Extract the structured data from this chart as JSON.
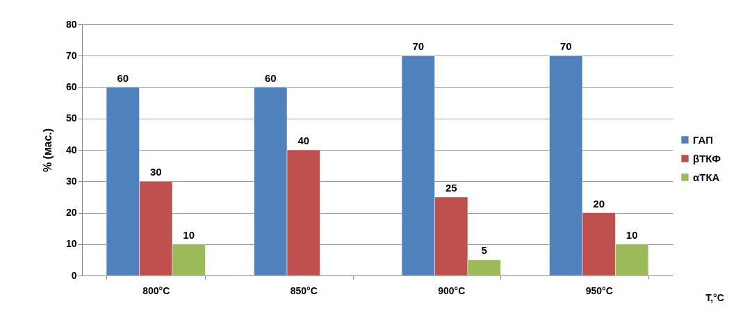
{
  "chart_data": {
    "type": "bar",
    "ylabel": "% (мас.)",
    "xlabel": "T,°C",
    "categories": [
      "800°C",
      "850°C",
      "900°C",
      "950°C"
    ],
    "series": [
      {
        "name": "ГАП",
        "color": "#4f81bd",
        "values": [
          60,
          60,
          70,
          70
        ]
      },
      {
        "name": "βТКФ",
        "color": "#c0504d",
        "values": [
          30,
          40,
          25,
          20
        ]
      },
      {
        "name": "αТКА",
        "color": "#9bbb59",
        "values": [
          10,
          null,
          5,
          10
        ]
      }
    ],
    "ylim": [
      0,
      80
    ],
    "yticks": [
      0,
      10,
      20,
      30,
      40,
      50,
      60,
      70,
      80
    ],
    "grid": "y",
    "legend": "right",
    "data_labels": true
  }
}
